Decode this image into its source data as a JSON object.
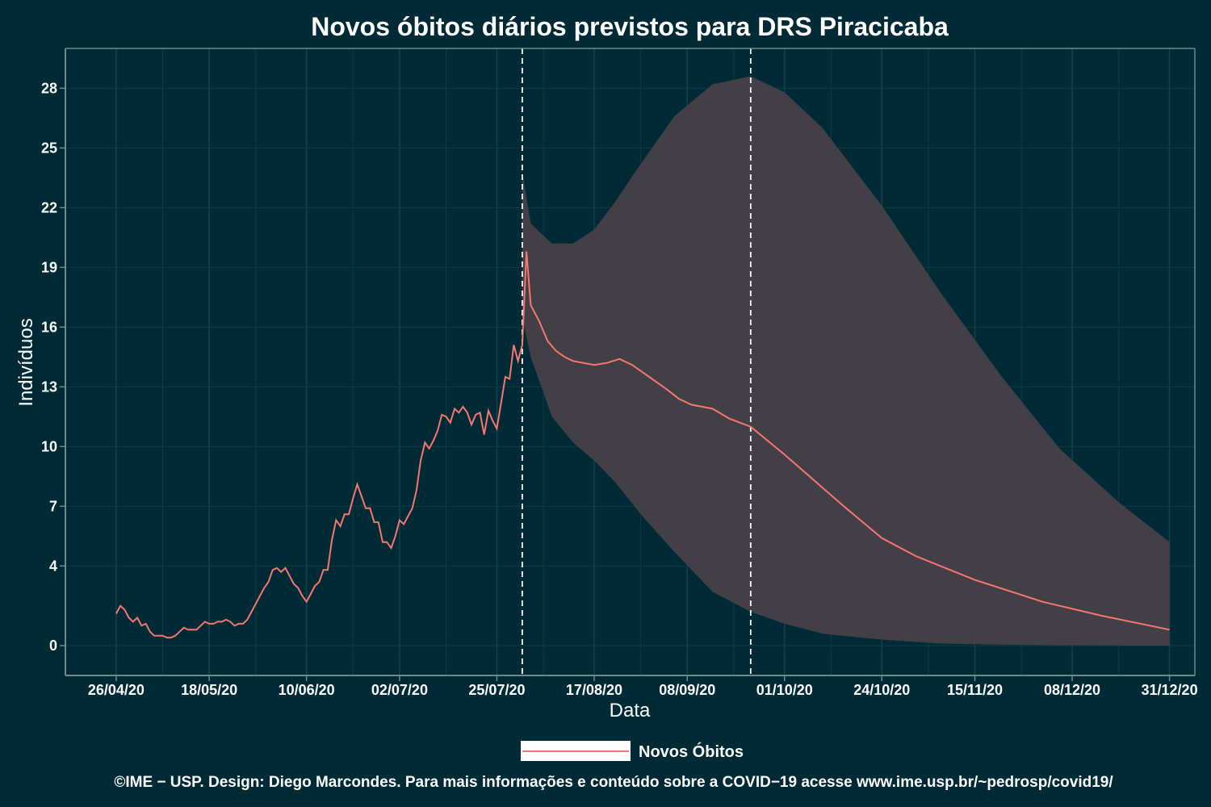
{
  "chart_data": {
    "type": "line",
    "title": "Novos óbitos diários previstos para DRS Piracicaba",
    "xlabel": "Data",
    "ylabel": "Indivíduos",
    "x_ticks": [
      "26/04/20",
      "18/05/20",
      "10/06/20",
      "02/07/20",
      "25/07/20",
      "17/08/20",
      "08/09/20",
      "01/10/20",
      "24/10/20",
      "15/11/20",
      "08/12/20",
      "31/12/20"
    ],
    "y_ticks": [
      0,
      4,
      7,
      10,
      13,
      16,
      19,
      22,
      25,
      28
    ],
    "xlim": [
      "2020-04-14",
      "2021-01-06"
    ],
    "ylim": [
      -1.5,
      30
    ],
    "grid": true,
    "legend_position": "bottom",
    "vlines": [
      "2020-07-31",
      "2020-09-23"
    ],
    "series": [
      {
        "name": "Novos Óbitos",
        "color": "#f8766d",
        "x": [
          "2020-04-26",
          "2020-04-27",
          "2020-04-28",
          "2020-04-29",
          "2020-04-30",
          "2020-05-01",
          "2020-05-02",
          "2020-05-03",
          "2020-05-04",
          "2020-05-05",
          "2020-05-06",
          "2020-05-07",
          "2020-05-08",
          "2020-05-09",
          "2020-05-10",
          "2020-05-11",
          "2020-05-12",
          "2020-05-13",
          "2020-05-14",
          "2020-05-15",
          "2020-05-16",
          "2020-05-17",
          "2020-05-18",
          "2020-05-19",
          "2020-05-20",
          "2020-05-21",
          "2020-05-22",
          "2020-05-23",
          "2020-05-24",
          "2020-05-25",
          "2020-05-26",
          "2020-05-27",
          "2020-05-28",
          "2020-05-29",
          "2020-05-30",
          "2020-05-31",
          "2020-06-01",
          "2020-06-02",
          "2020-06-03",
          "2020-06-04",
          "2020-06-05",
          "2020-06-06",
          "2020-06-07",
          "2020-06-08",
          "2020-06-09",
          "2020-06-10",
          "2020-06-11",
          "2020-06-12",
          "2020-06-13",
          "2020-06-14",
          "2020-06-15",
          "2020-06-16",
          "2020-06-17",
          "2020-06-18",
          "2020-06-19",
          "2020-06-20",
          "2020-06-21",
          "2020-06-22",
          "2020-06-23",
          "2020-06-24",
          "2020-06-25",
          "2020-06-26",
          "2020-06-27",
          "2020-06-28",
          "2020-06-29",
          "2020-06-30",
          "2020-07-01",
          "2020-07-02",
          "2020-07-03",
          "2020-07-04",
          "2020-07-05",
          "2020-07-06",
          "2020-07-07",
          "2020-07-08",
          "2020-07-09",
          "2020-07-10",
          "2020-07-11",
          "2020-07-12",
          "2020-07-13",
          "2020-07-14",
          "2020-07-15",
          "2020-07-16",
          "2020-07-17",
          "2020-07-18",
          "2020-07-19",
          "2020-07-20",
          "2020-07-21",
          "2020-07-22",
          "2020-07-23",
          "2020-07-24",
          "2020-07-25",
          "2020-07-26",
          "2020-07-27",
          "2020-07-28",
          "2020-07-29",
          "2020-07-30",
          "2020-07-31",
          "2020-08-01",
          "2020-08-02",
          "2020-08-04",
          "2020-08-06",
          "2020-08-08",
          "2020-08-10",
          "2020-08-12",
          "2020-08-17",
          "2020-08-20",
          "2020-08-23",
          "2020-08-26",
          "2020-08-30",
          "2020-09-03",
          "2020-09-06",
          "2020-09-09",
          "2020-09-14",
          "2020-09-18",
          "2020-09-23",
          "2020-10-01",
          "2020-10-08",
          "2020-10-15",
          "2020-10-24",
          "2020-11-01",
          "2020-11-15",
          "2020-12-01",
          "2020-12-15",
          "2020-12-31"
        ],
        "y": [
          1.6,
          2,
          1.8,
          1.4,
          1.2,
          1.4,
          1,
          1.1,
          0.7,
          0.5,
          0.5,
          0.5,
          0.4,
          0.4,
          0.5,
          0.7,
          0.9,
          0.8,
          0.8,
          0.8,
          1,
          1.2,
          1.1,
          1.1,
          1.2,
          1.2,
          1.3,
          1.2,
          1,
          1.1,
          1.1,
          1.3,
          1.7,
          2.1,
          2.5,
          2.9,
          3.2,
          3.8,
          3.9,
          3.7,
          3.9,
          3.5,
          3.1,
          2.9,
          2.5,
          2.2,
          2.6,
          3,
          3.2,
          3.8,
          3.8,
          5.3,
          6.3,
          6,
          6.6,
          6.6,
          7.4,
          8.1,
          7.5,
          6.9,
          6.9,
          6.2,
          6.2,
          5.2,
          5.2,
          4.9,
          5.5,
          6.3,
          6.1,
          6.5,
          6.9,
          7.8,
          9.3,
          10.2,
          9.9,
          10.3,
          10.8,
          11.6,
          11.5,
          11.2,
          11.9,
          11.7,
          12,
          11.7,
          11.1,
          11.6,
          11.7,
          10.6,
          11.8,
          11.3,
          10.9,
          12.2,
          13.5,
          13.4,
          15.1,
          14.3,
          15.1,
          19.8,
          17.1,
          16.3,
          15.3,
          14.8,
          14.5,
          14.3,
          14.1,
          14.2,
          14.4,
          14.1,
          13.5,
          12.9,
          12.4,
          12.1,
          11.9,
          11.4,
          11,
          9.6,
          8.3,
          7,
          5.4,
          4.5,
          3.3,
          2.2,
          1.5,
          0.8
        ]
      }
    ],
    "interval": {
      "x": [
        "2020-07-31",
        "2020-08-02",
        "2020-08-07",
        "2020-08-12",
        "2020-08-17",
        "2020-08-22",
        "2020-08-28",
        "2020-09-05",
        "2020-09-14",
        "2020-09-23",
        "2020-10-01",
        "2020-10-10",
        "2020-10-24",
        "2020-11-07",
        "2020-11-21",
        "2020-12-05",
        "2020-12-19",
        "2020-12-31"
      ],
      "upper": [
        23.8,
        21.2,
        20.2,
        20.2,
        20.9,
        22.3,
        24.2,
        26.6,
        28.2,
        28.6,
        27.8,
        26,
        22.1,
        17.7,
        13.6,
        9.9,
        7.2,
        5.2
      ],
      "lower": [
        16.5,
        14.5,
        11.5,
        10.2,
        9.3,
        8.2,
        6.6,
        4.7,
        2.7,
        1.7,
        1.1,
        0.6,
        0.3,
        0.1,
        0.05,
        0.02,
        0.01,
        0
      ]
    },
    "legend": {
      "label": "Novos Óbitos"
    },
    "caption": "©IME − USP. Design: Diego Marcondes. Para mais informações e conteúdo sobre a COVID−19 acesse www.ime.usp.br/~pedrosp/covid19/"
  }
}
